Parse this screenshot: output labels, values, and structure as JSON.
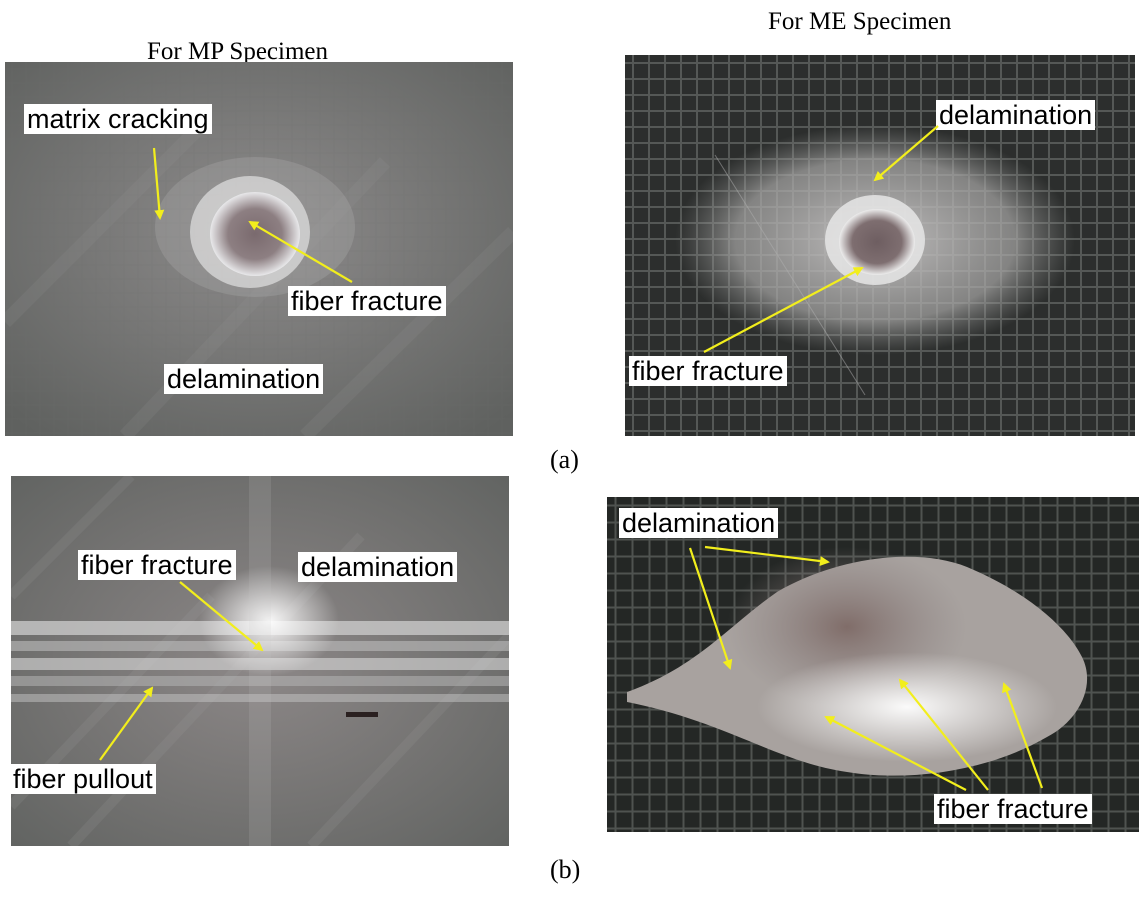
{
  "headings": {
    "mp": "For MP Specimen",
    "me": "For ME Specimen"
  },
  "sublabels": {
    "a": "(a)",
    "b": "(b)"
  },
  "panels": {
    "a_mp": {
      "labels": [
        "matrix cracking",
        "fiber fracture",
        "delamination"
      ]
    },
    "a_me": {
      "labels": [
        "delamination",
        "fiber fracture"
      ]
    },
    "b_mp": {
      "labels": [
        "fiber fracture",
        "delamination",
        "fiber pullout"
      ]
    },
    "b_me": {
      "labels": [
        "delamination",
        "fiber fracture"
      ]
    }
  },
  "colors": {
    "arrow": "#f2ee1c",
    "label_bg": "#ffffff"
  }
}
